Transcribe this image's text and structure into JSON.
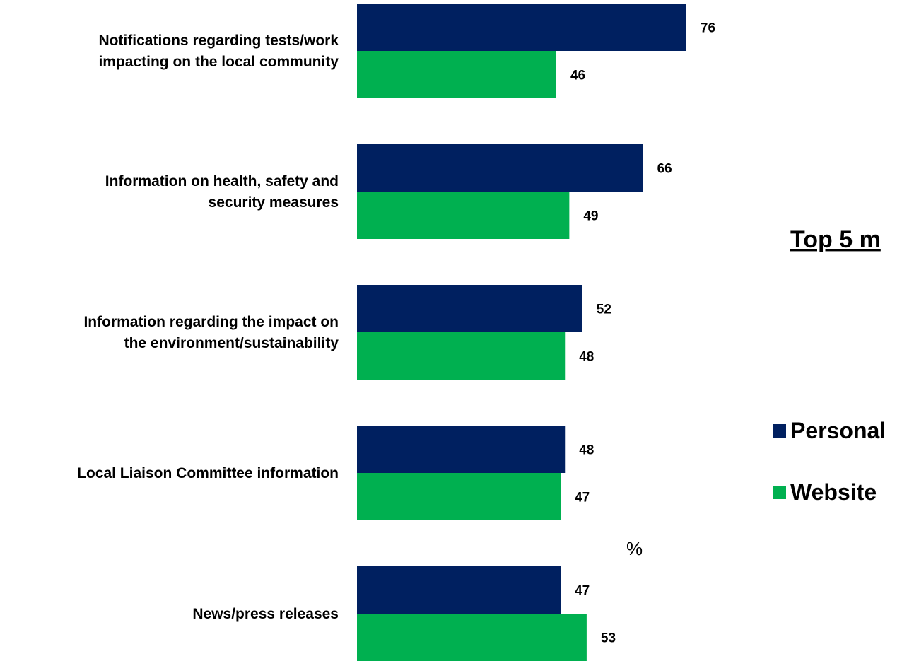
{
  "side_title": "Top 5 m",
  "unit_label": "%",
  "chart_data": {
    "type": "bar",
    "orientation": "horizontal",
    "categories": [
      [
        "Notifications regarding tests/work",
        "impacting on the local community"
      ],
      [
        "Information on health, safety and",
        "security measures"
      ],
      [
        "Information regarding the impact on",
        "the environment/sustainability"
      ],
      [
        "Local Liaison Committee information"
      ],
      [
        "News/press releases"
      ]
    ],
    "series": [
      {
        "name": "Personal",
        "color": "#002060",
        "values": [
          76,
          66,
          52,
          48,
          47
        ]
      },
      {
        "name": "Website",
        "color": "#00B050",
        "values": [
          46,
          49,
          48,
          47,
          53
        ]
      }
    ],
    "legend_position": "right",
    "grid": false
  }
}
